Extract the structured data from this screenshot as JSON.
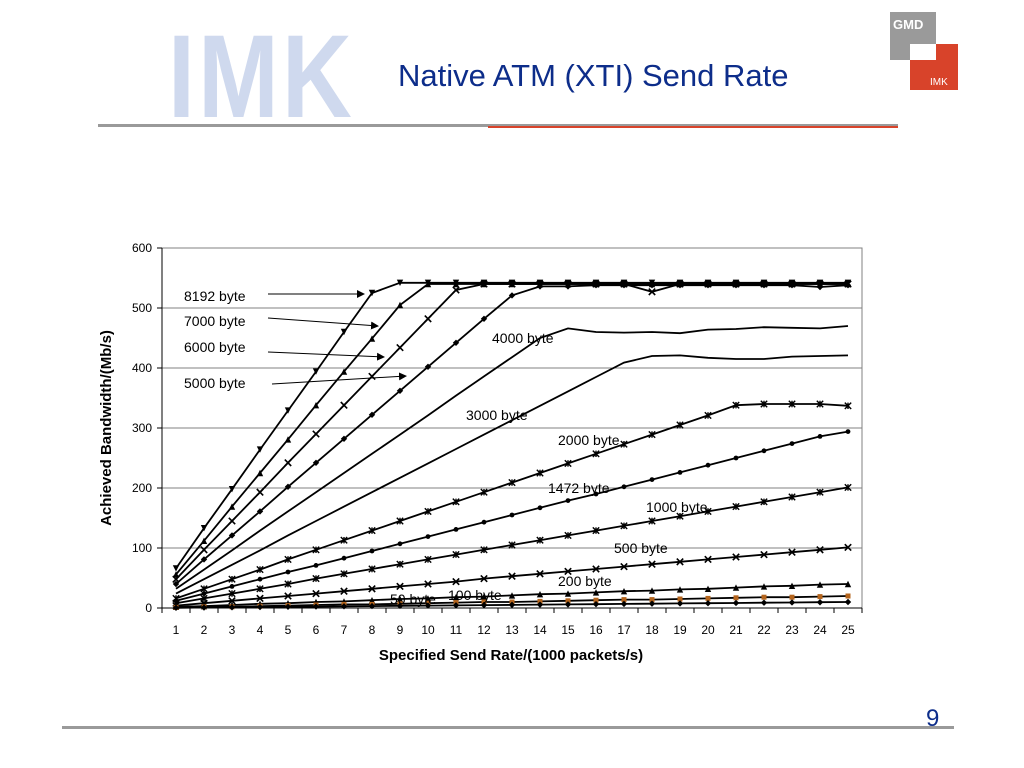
{
  "header": {
    "title": "Native ATM (XTI) Send Rate",
    "logo_imk_text": "IMK",
    "logo_gmd_top": "GMD",
    "logo_gmd_bottom": "IMK"
  },
  "footer": {
    "page_number": "9"
  },
  "colors": {
    "title": "#0d2d8a",
    "gmd_red": "#d8432a",
    "gmd_gray": "#9a9a9a",
    "series_line": "#000000",
    "accent_marker": "#b5651d"
  },
  "chart_data": {
    "type": "line",
    "xlabel": "Specified Send Rate/(1000 packets/s)",
    "ylabel": "Achieved Bandwidth/(Mb/s)",
    "ylim": [
      0,
      600
    ],
    "yticks": [
      0,
      100,
      200,
      300,
      400,
      500,
      600
    ],
    "x": [
      1,
      2,
      3,
      4,
      5,
      6,
      7,
      8,
      9,
      10,
      11,
      12,
      13,
      14,
      15,
      16,
      17,
      18,
      19,
      20,
      21,
      22,
      23,
      24,
      25
    ],
    "grid": "horizontal",
    "series": [
      {
        "name": "8192 byte",
        "marker": "triangle-down",
        "values": [
          66,
          133,
          198,
          264,
          329,
          394,
          460,
          525,
          542,
          542,
          542,
          542,
          542,
          542,
          542,
          542,
          542,
          542,
          542,
          542,
          542,
          542,
          542,
          542,
          542
        ]
      },
      {
        "name": "7000 byte",
        "marker": "triangle",
        "values": [
          56,
          112,
          169,
          225,
          281,
          338,
          394,
          449,
          505,
          540,
          540,
          540,
          540,
          540,
          540,
          540,
          540,
          540,
          540,
          540,
          540,
          540,
          540,
          540,
          540
        ]
      },
      {
        "name": "6000 byte",
        "marker": "cross",
        "values": [
          48,
          97,
          145,
          193,
          242,
          290,
          338,
          386,
          434,
          482,
          530,
          540,
          540,
          540,
          540,
          540,
          540,
          527,
          540,
          540,
          540,
          540,
          540,
          540,
          540
        ]
      },
      {
        "name": "5000 byte",
        "marker": "diamond",
        "values": [
          40,
          81,
          121,
          161,
          202,
          242,
          282,
          322,
          362,
          402,
          442,
          482,
          521,
          536,
          536,
          538,
          538,
          538,
          538,
          538,
          538,
          538,
          538,
          535,
          538
        ]
      },
      {
        "name": "4000 byte",
        "marker": "none",
        "values": [
          32,
          64,
          96,
          129,
          161,
          193,
          225,
          257,
          289,
          321,
          354,
          386,
          418,
          450,
          466,
          460,
          459,
          460,
          458,
          464,
          465,
          468,
          467,
          466,
          470
        ]
      },
      {
        "name": "3000 byte",
        "marker": "none",
        "values": [
          24,
          48,
          72,
          96,
          121,
          145,
          169,
          193,
          217,
          241,
          265,
          289,
          313,
          337,
          361,
          385,
          409,
          420,
          421,
          417,
          415,
          415,
          419,
          420,
          421
        ]
      },
      {
        "name": "2000 byte",
        "marker": "asterisk",
        "values": [
          16,
          32,
          48,
          64,
          81,
          97,
          113,
          129,
          145,
          161,
          177,
          193,
          209,
          225,
          241,
          257,
          273,
          289,
          305,
          321,
          338,
          340,
          340,
          340,
          337
        ]
      },
      {
        "name": "1472 byte",
        "marker": "circle",
        "values": [
          12,
          24,
          36,
          48,
          60,
          71,
          83,
          95,
          107,
          119,
          131,
          143,
          155,
          167,
          179,
          190,
          202,
          214,
          226,
          238,
          250,
          262,
          274,
          286,
          294
        ]
      },
      {
        "name": "1000 byte",
        "marker": "asterisk",
        "values": [
          8,
          16,
          24,
          32,
          40,
          49,
          57,
          65,
          73,
          81,
          89,
          97,
          105,
          113,
          121,
          129,
          137,
          145,
          153,
          161,
          169,
          177,
          185,
          193,
          201
        ]
      },
      {
        "name": "500 byte",
        "marker": "cross",
        "values": [
          4,
          8,
          12,
          16,
          20,
          24,
          28,
          32,
          36,
          40,
          44,
          49,
          53,
          57,
          61,
          65,
          69,
          73,
          77,
          81,
          85,
          89,
          93,
          97,
          101
        ]
      },
      {
        "name": "200 byte",
        "marker": "triangle",
        "values": [
          2,
          3,
          5,
          7,
          8,
          10,
          11,
          13,
          15,
          16,
          18,
          19,
          21,
          23,
          24,
          26,
          28,
          29,
          31,
          32,
          34,
          36,
          37,
          39,
          40
        ]
      },
      {
        "name": "100 byte",
        "marker": "square",
        "values": [
          1,
          2,
          2,
          3,
          4,
          5,
          6,
          6,
          7,
          8,
          9,
          10,
          10,
          11,
          12,
          13,
          14,
          14,
          15,
          16,
          17,
          18,
          18,
          19,
          20
        ]
      },
      {
        "name": "50 byte",
        "marker": "diamond",
        "values": [
          0.4,
          0.8,
          1.2,
          1.6,
          2,
          2.4,
          2.8,
          3.2,
          3.6,
          4,
          4.4,
          4.8,
          5.2,
          5.6,
          6,
          6.4,
          6.8,
          7.2,
          7.6,
          8,
          8.4,
          8.8,
          9.2,
          9.6,
          10
        ]
      }
    ]
  }
}
